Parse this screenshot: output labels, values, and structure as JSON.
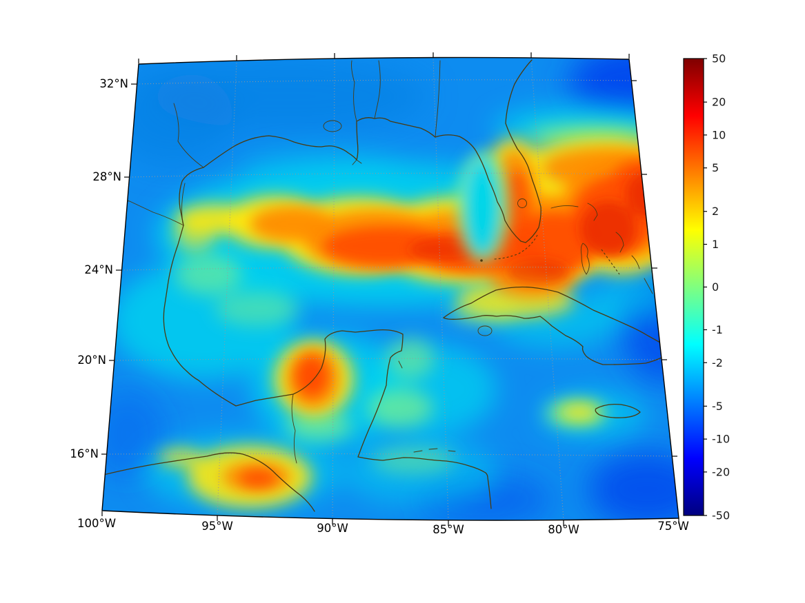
{
  "figure": {
    "background_color": "#ffffff",
    "kind": "geographic heatmap figure with vertical colorbar"
  },
  "chart_data": {
    "type": "heatmap",
    "subtype": "geographic_field_map",
    "region": "Gulf of Mexico, Caribbean and western North Atlantic",
    "projection": "curved conic-style map projection (fan-shaped panel)",
    "extent": {
      "lon_min": -100,
      "lon_max": -75,
      "lat_min": 14,
      "lat_max": 33
    },
    "grid": "dotted gray graticule every 5 deg longitude / 4 deg latitude",
    "x_axis": {
      "tick_labels": [
        "100°W",
        "95°W",
        "90°W",
        "85°W",
        "80°W",
        "75°W"
      ]
    },
    "y_axis": {
      "tick_labels": [
        "32°N",
        "28°N",
        "24°N",
        "20°N",
        "16°N"
      ]
    },
    "colorbar": {
      "orientation": "vertical",
      "position": "right",
      "scale": "symlog",
      "range": [
        -50,
        50
      ],
      "tick_values": [
        50,
        20,
        10,
        5,
        2,
        1,
        0,
        -1,
        -2,
        -5,
        -10,
        -20,
        -50
      ],
      "colormap": "jet",
      "colormap_stops": [
        "#7f0000",
        "#ff0000",
        "#ffff00",
        "#00ffff",
        "#0000ff",
        "#00007f"
      ]
    },
    "field_features": [
      {
        "name": "warm-band-loop-current-gulf-stream",
        "value_range": "+2 to +20",
        "description": "broad warm anomaly band from ~95W to the eastern edge between ~23N and 27N, wrapping around Florida and continuing northeast along the Gulf Stream to the right edge"
      },
      {
        "name": "campeche-warm-eddy",
        "value_range": "+2 to +10",
        "description": "isolated warm eddy in the Bay of Campeche near 91W, 19.5N"
      },
      {
        "name": "tehuantepec-warm-patch",
        "value_range": "+1 to +5",
        "description": "warm patch over southern Mexico / Gulf of Tehuantepec near 94W, 15.5N"
      },
      {
        "name": "jamaica-warm-patch",
        "value_range": "0 to +2",
        "description": "small yellow-green patch near Jamaica ~77W, 18N"
      },
      {
        "name": "florida-shelf-cool-tongue",
        "value_range": "-1 to -2",
        "description": "narrow cyan cool tongue hugging the Florida west coast between the gulf warm band and the peninsula"
      },
      {
        "name": "cool-background",
        "value_range": "-2 to -20",
        "description": "cool anomalies over the remainder of the domain; deepest blue in the northeast corner, along the east edge below the band, and in the southeast corner"
      }
    ],
    "coastline_color": "#4a3a10",
    "graticule_color": "#999999"
  }
}
